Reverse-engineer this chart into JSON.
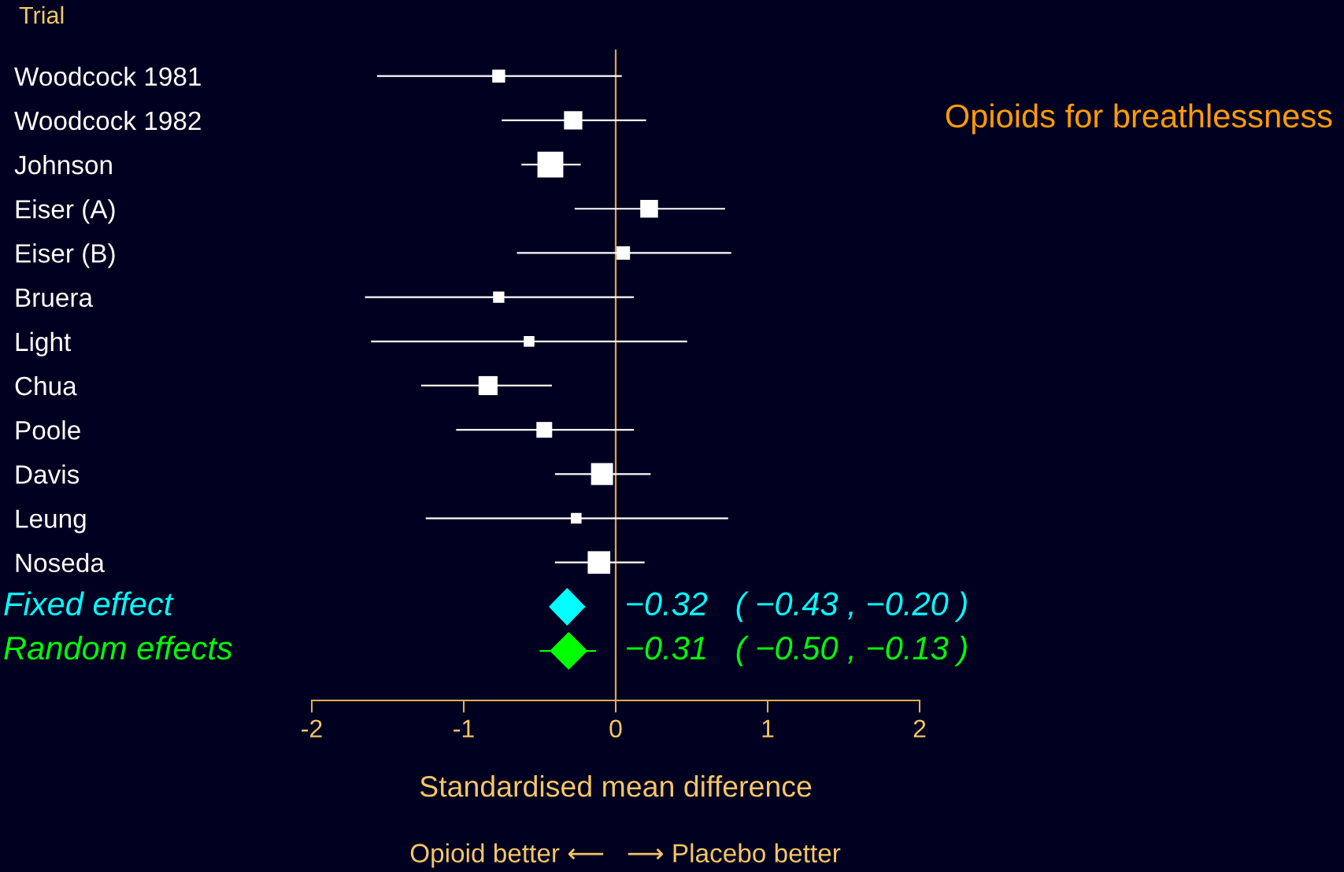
{
  "chart_data": {
    "type": "scatter",
    "orientation": "horizontal",
    "title": "Opioids for breathlessness",
    "ylabel": "Trial",
    "xlabel": "Standardised mean difference",
    "annotations": [
      "Opioid better ⟵   ⟶ Placebo better"
    ],
    "categories": [
      "Woodcock 1981",
      "Woodcock 1982",
      "Johnson",
      "Eiser (A)",
      "Eiser (B)",
      "Bruera",
      "Light",
      "Chua",
      "Poole",
      "Davis",
      "Leung",
      "Noseda",
      null,
      null
    ],
    "series": [
      {
        "type": "bubble",
        "color": "#ffffff",
        "marker": "square",
        "values": [
          -0.77,
          -0.28,
          -0.43,
          0.22,
          0.05,
          -0.77,
          -0.57,
          -0.84,
          -0.47,
          -0.09,
          -0.26,
          -0.11,
          null,
          null
        ],
        "errors": [
          [
            -1.57,
            0.04
          ],
          [
            -0.75,
            0.2
          ],
          [
            -0.62,
            -0.23
          ],
          [
            -0.27,
            0.72
          ],
          [
            -0.65,
            0.76
          ],
          [
            -1.65,
            0.12
          ],
          [
            -1.61,
            0.47
          ],
          [
            -1.28,
            -0.42
          ],
          [
            -1.05,
            0.12
          ],
          [
            -0.4,
            0.23
          ],
          [
            -1.25,
            0.74
          ],
          [
            -0.4,
            0.19
          ],
          null,
          null
        ],
        "sizes": [
          0.25,
          0.5,
          1,
          0.47,
          0.27,
          0.19,
          0.17,
          0.54,
          0.37,
          0.72,
          0.17,
          0.76,
          null,
          null
        ]
      },
      {
        "name": "Fixed effect",
        "color": "#00ffff",
        "marker": "diamond",
        "values": [
          null,
          null,
          null,
          null,
          null,
          null,
          null,
          null,
          null,
          null,
          null,
          null,
          -0.32,
          null
        ],
        "errors": [
          null,
          null,
          null,
          null,
          null,
          null,
          null,
          null,
          null,
          null,
          null,
          null,
          [
            -0.43,
            -0.2
          ],
          null
        ],
        "value_labels": [
          null,
          null,
          null,
          null,
          null,
          null,
          null,
          null,
          null,
          null,
          null,
          null,
          "−0.32   ( −0.43 , −0.20 )",
          null
        ]
      },
      {
        "name": "Random effects",
        "color": "#00ff00",
        "marker": "diamond",
        "values": [
          null,
          null,
          null,
          null,
          null,
          null,
          null,
          null,
          null,
          null,
          null,
          null,
          null,
          -0.31
        ],
        "errors": [
          null,
          null,
          null,
          null,
          null,
          null,
          null,
          null,
          null,
          null,
          null,
          null,
          null,
          [
            -0.5,
            -0.13
          ]
        ],
        "value_labels": [
          null,
          null,
          null,
          null,
          null,
          null,
          null,
          null,
          null,
          null,
          null,
          null,
          null,
          "−0.31   ( −0.50 , −0.13 )"
        ]
      }
    ],
    "xlim": [
      -2,
      2
    ],
    "xticks": [
      -2,
      -1,
      0,
      1,
      2
    ],
    "ref_lines": [
      {
        "axis": "x",
        "value": 0,
        "color": "#d9a441"
      }
    ]
  }
}
